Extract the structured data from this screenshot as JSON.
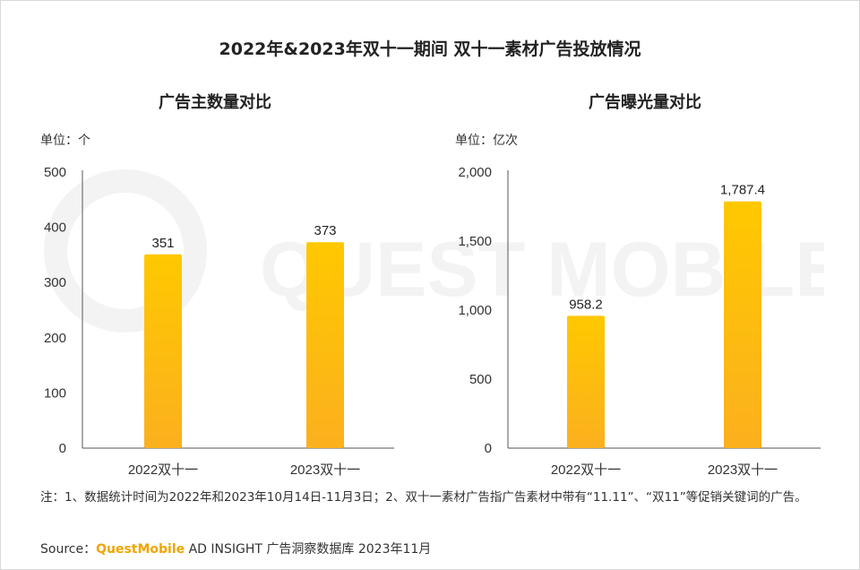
{
  "title": "2022年&2023年双十一期间 双十一素材广告投放情况",
  "watermark_text": "QUEST MOBILE",
  "colors": {
    "bar_top": "#ffc800",
    "bar_bottom": "#fbb01e",
    "axis": "#555555"
  },
  "chart_data": [
    {
      "type": "bar",
      "title": "广告主数量对比",
      "unit_label": "单位：个",
      "categories": [
        "2022双十一",
        "2023双十一"
      ],
      "values": [
        351,
        373
      ],
      "value_labels": [
        "351",
        "373"
      ],
      "ylim": [
        0,
        500
      ],
      "yticks": [
        0,
        100,
        200,
        300,
        400,
        500
      ],
      "ytick_labels": [
        "0",
        "100",
        "200",
        "300",
        "400",
        "500"
      ],
      "grid": false
    },
    {
      "type": "bar",
      "title": "广告曝光量对比",
      "unit_label": "单位：亿次",
      "categories": [
        "2022双十一",
        "2023双十一"
      ],
      "values": [
        958.2,
        1787.4
      ],
      "value_labels": [
        "958.2",
        "1,787.4"
      ],
      "ylim": [
        0,
        2000
      ],
      "yticks": [
        0,
        500,
        1000,
        1500,
        2000
      ],
      "ytick_labels": [
        "0",
        "500",
        "1,000",
        "1,500",
        "2,000"
      ],
      "grid": false
    }
  ],
  "note": "注：1、数据统计时间为2022年和2023年10月14日-11月3日；2、双十一素材广告指广告素材中带有“11.11”、“双11”等促销关键词的广告。",
  "source": {
    "prefix": "Source：",
    "brand": "QuestMobile",
    "rest": " AD INSIGHT 广告洞察数据库 2023年11月"
  }
}
